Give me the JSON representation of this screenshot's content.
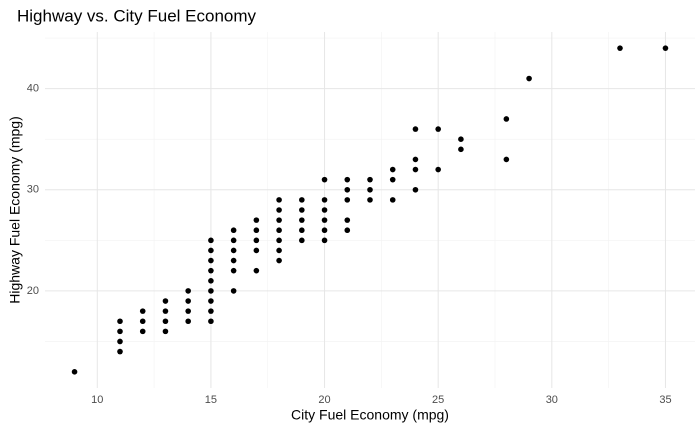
{
  "chart_data": {
    "type": "scatter",
    "title": "Highway vs. City Fuel Economy",
    "x_label": "City Fuel Economy (mpg)",
    "y_label": "Highway Fuel Economy (mpg)",
    "x": [
      9,
      11,
      11,
      11,
      11,
      12,
      12,
      12,
      13,
      13,
      13,
      13,
      14,
      14,
      14,
      14,
      15,
      15,
      15,
      15,
      15,
      15,
      15,
      15,
      15,
      16,
      16,
      16,
      16,
      16,
      16,
      17,
      17,
      17,
      17,
      17,
      18,
      18,
      18,
      18,
      18,
      18,
      18,
      19,
      19,
      19,
      19,
      19,
      20,
      20,
      20,
      20,
      20,
      20,
      21,
      21,
      21,
      21,
      21,
      22,
      22,
      22,
      23,
      23,
      23,
      24,
      24,
      24,
      24,
      25,
      25,
      26,
      26,
      28,
      28,
      29,
      33,
      35
    ],
    "values": [
      12,
      14,
      15,
      16,
      17,
      16,
      17,
      18,
      16,
      17,
      18,
      19,
      17,
      18,
      19,
      20,
      17,
      18,
      19,
      20,
      21,
      22,
      23,
      24,
      25,
      20,
      22,
      23,
      24,
      25,
      26,
      22,
      24,
      25,
      26,
      27,
      23,
      24,
      25,
      26,
      27,
      28,
      29,
      25,
      26,
      27,
      28,
      29,
      25,
      26,
      27,
      28,
      29,
      31,
      26,
      27,
      29,
      30,
      31,
      29,
      30,
      31,
      29,
      31,
      32,
      30,
      32,
      33,
      36,
      32,
      36,
      34,
      35,
      33,
      37,
      41,
      44,
      44
    ],
    "color": "#000000",
    "xlim": [
      7.7,
      36.3
    ],
    "ylim": [
      10.4,
      45.6
    ],
    "xticks": [
      10,
      15,
      20,
      25,
      30,
      35
    ],
    "yticks": [
      20,
      30,
      40
    ],
    "grid": true
  }
}
